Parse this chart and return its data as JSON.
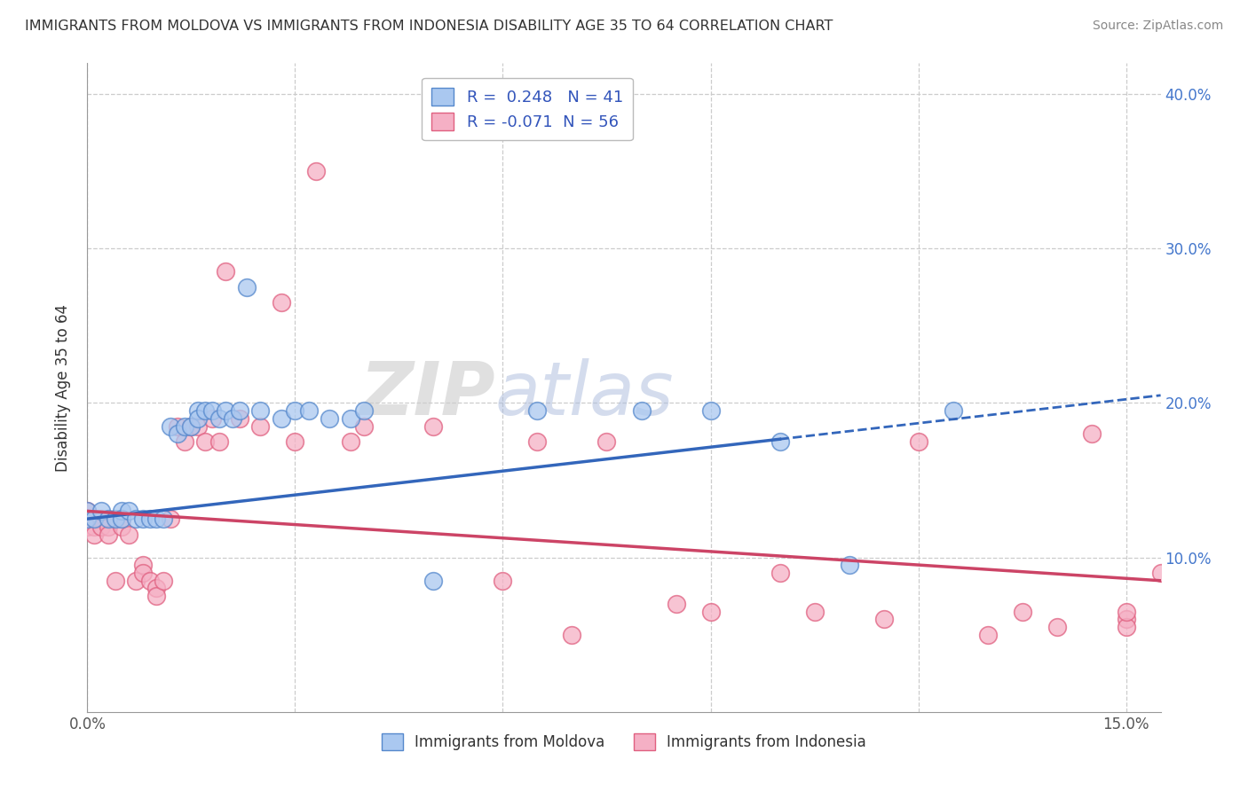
{
  "title": "IMMIGRANTS FROM MOLDOVA VS IMMIGRANTS FROM INDONESIA DISABILITY AGE 35 TO 64 CORRELATION CHART",
  "source": "Source: ZipAtlas.com",
  "ylabel": "Disability Age 35 to 64",
  "xlim": [
    0.0,
    0.155
  ],
  "ylim": [
    0.0,
    0.42
  ],
  "moldova_color": "#aac8f0",
  "moldova_edge": "#5588cc",
  "indonesia_color": "#f5b0c5",
  "indonesia_edge": "#e06080",
  "moldova_R": 0.248,
  "moldova_N": 41,
  "indonesia_R": -0.071,
  "indonesia_N": 56,
  "moldova_line_color": "#3366bb",
  "indonesia_line_color": "#cc4466",
  "watermark_zip": "ZIP",
  "watermark_atlas": "atlas",
  "legend_label_moldova": "Immigrants from Moldova",
  "legend_label_indonesia": "Immigrants from Indonesia",
  "moldova_x": [
    0.0,
    0.0,
    0.001,
    0.002,
    0.003,
    0.004,
    0.005,
    0.005,
    0.006,
    0.007,
    0.008,
    0.009,
    0.01,
    0.011,
    0.012,
    0.013,
    0.014,
    0.015,
    0.016,
    0.016,
    0.017,
    0.018,
    0.019,
    0.02,
    0.021,
    0.022,
    0.023,
    0.025,
    0.028,
    0.03,
    0.032,
    0.035,
    0.038,
    0.04,
    0.05,
    0.065,
    0.08,
    0.09,
    0.1,
    0.11,
    0.125
  ],
  "moldova_y": [
    0.13,
    0.125,
    0.125,
    0.13,
    0.125,
    0.125,
    0.13,
    0.125,
    0.13,
    0.125,
    0.125,
    0.125,
    0.125,
    0.125,
    0.185,
    0.18,
    0.185,
    0.185,
    0.195,
    0.19,
    0.195,
    0.195,
    0.19,
    0.195,
    0.19,
    0.195,
    0.275,
    0.195,
    0.19,
    0.195,
    0.195,
    0.19,
    0.19,
    0.195,
    0.085,
    0.195,
    0.195,
    0.195,
    0.175,
    0.095,
    0.195
  ],
  "indonesia_x": [
    0.0,
    0.0,
    0.0,
    0.001,
    0.001,
    0.001,
    0.002,
    0.002,
    0.003,
    0.003,
    0.004,
    0.005,
    0.005,
    0.006,
    0.007,
    0.008,
    0.008,
    0.009,
    0.01,
    0.01,
    0.011,
    0.012,
    0.013,
    0.014,
    0.015,
    0.016,
    0.017,
    0.018,
    0.019,
    0.02,
    0.022,
    0.025,
    0.028,
    0.03,
    0.033,
    0.038,
    0.04,
    0.05,
    0.06,
    0.065,
    0.07,
    0.075,
    0.085,
    0.09,
    0.1,
    0.105,
    0.115,
    0.12,
    0.13,
    0.135,
    0.14,
    0.145,
    0.15,
    0.15,
    0.15,
    0.155
  ],
  "indonesia_y": [
    0.13,
    0.125,
    0.12,
    0.125,
    0.12,
    0.115,
    0.125,
    0.12,
    0.12,
    0.115,
    0.085,
    0.125,
    0.12,
    0.115,
    0.085,
    0.095,
    0.09,
    0.085,
    0.08,
    0.075,
    0.085,
    0.125,
    0.185,
    0.175,
    0.185,
    0.185,
    0.175,
    0.19,
    0.175,
    0.285,
    0.19,
    0.185,
    0.265,
    0.175,
    0.35,
    0.175,
    0.185,
    0.185,
    0.085,
    0.175,
    0.05,
    0.175,
    0.07,
    0.065,
    0.09,
    0.065,
    0.06,
    0.175,
    0.05,
    0.065,
    0.055,
    0.18,
    0.06,
    0.055,
    0.065,
    0.09
  ]
}
